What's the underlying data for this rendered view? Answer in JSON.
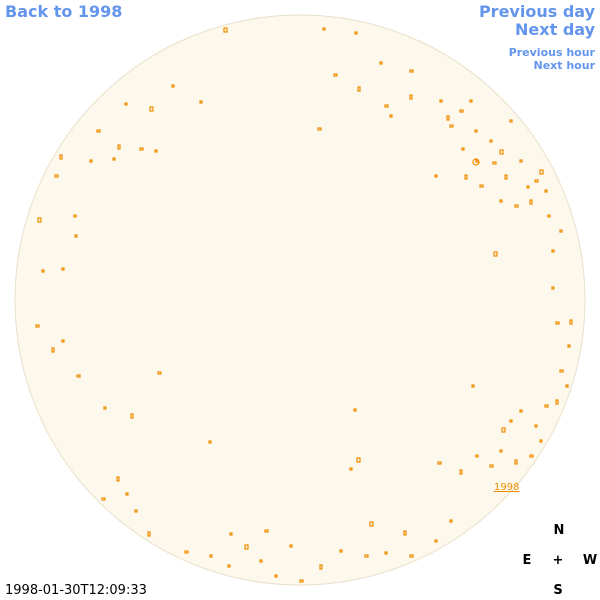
{
  "nav": {
    "back": "Back to 1998",
    "previous_day": "Previous day",
    "next_day": "Next day",
    "previous_hour": "Previous hour",
    "next_hour": "Next hour"
  },
  "map": {
    "year_link": "1998",
    "timestamp": "1998-01-30T12:09:33"
  },
  "compass": {
    "north": "N",
    "east": "E",
    "center": "+",
    "west": "W",
    "south": "S"
  }
}
